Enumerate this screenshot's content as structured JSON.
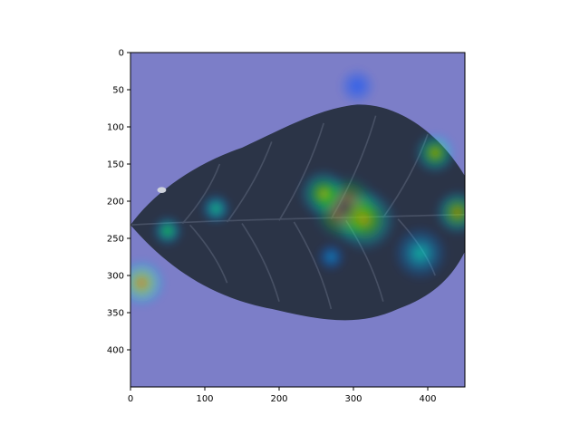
{
  "chart_data": {
    "type": "heatmap",
    "title": "",
    "xlabel": "",
    "ylabel": "",
    "xlim": [
      0,
      450
    ],
    "ylim": [
      450,
      0
    ],
    "x_ticks": [
      0,
      100,
      200,
      300,
      400
    ],
    "y_ticks": [
      0,
      50,
      100,
      150,
      200,
      250,
      300,
      350,
      400
    ],
    "colormap": "jet",
    "grid": false,
    "background_image": "soybean-leaf-grayscale",
    "overlay_base_color": "#7c7ec8",
    "leaf_color": "#2b3447",
    "hotspots": [
      {
        "x": 290,
        "y": 210,
        "intensity": 1.0,
        "spread": 48
      },
      {
        "x": 315,
        "y": 225,
        "intensity": 0.7,
        "spread": 45
      },
      {
        "x": 260,
        "y": 190,
        "intensity": 0.65,
        "spread": 35
      },
      {
        "x": 440,
        "y": 215,
        "intensity": 0.7,
        "spread": 32
      },
      {
        "x": 410,
        "y": 135,
        "intensity": 0.65,
        "spread": 30
      },
      {
        "x": 15,
        "y": 310,
        "intensity": 0.75,
        "spread": 35
      },
      {
        "x": 50,
        "y": 240,
        "intensity": 0.5,
        "spread": 22
      },
      {
        "x": 115,
        "y": 210,
        "intensity": 0.45,
        "spread": 22
      },
      {
        "x": 390,
        "y": 270,
        "intensity": 0.4,
        "spread": 38
      },
      {
        "x": 270,
        "y": 275,
        "intensity": 0.3,
        "spread": 20
      },
      {
        "x": 305,
        "y": 45,
        "intensity": 0.2,
        "spread": 25
      }
    ]
  }
}
